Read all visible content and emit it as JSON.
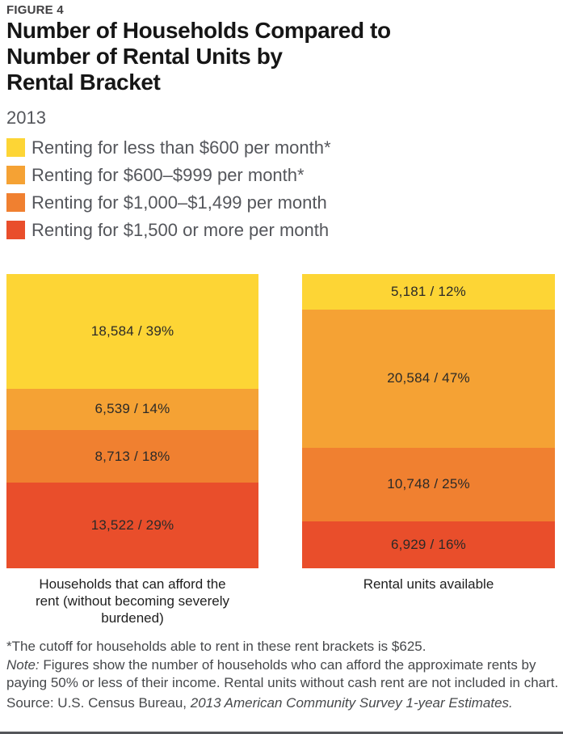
{
  "figure_label": "FIGURE 4",
  "title_lines": [
    "Number of Households Compared to",
    "Number of Rental Units by",
    "Rental Bracket"
  ],
  "subtitle": "2013",
  "colors": {
    "yellow": "#FDD535",
    "orange_light": "#F5A234",
    "orange_dark": "#F08030",
    "red": "#E94E2B",
    "legend_text": "#54565B",
    "title_text": "#161616",
    "footnote_text": "#46484B",
    "bottom_rule": "#54565A"
  },
  "chart_data": {
    "type": "bar",
    "variant": "stacked-100-percent",
    "title": "Number of Households Compared to Number of Rental Units by Rental Bracket",
    "year": "2013",
    "legend_position": "top",
    "grid": false,
    "categories": [
      "Households that can afford the rent (without becoming severely burdened)",
      "Rental units available"
    ],
    "series": [
      {
        "name": "Renting for less than $600 per month*",
        "color": "#FDD535",
        "values": [
          18584,
          5181
        ],
        "percents": [
          39,
          12
        ],
        "labels": [
          "18,584 / 39%",
          "5,181 / 12%"
        ]
      },
      {
        "name": "Renting for $600–$999 per month*",
        "color": "#F5A234",
        "values": [
          6539,
          20584
        ],
        "percents": [
          14,
          47
        ],
        "labels": [
          "6,539 / 14%",
          "20,584 / 47%"
        ]
      },
      {
        "name": "Renting for $1,000–$1,499 per month",
        "color": "#F08030",
        "values": [
          8713,
          10748
        ],
        "percents": [
          18,
          25
        ],
        "labels": [
          "8,713 / 18%",
          "10,748 / 25%"
        ]
      },
      {
        "name": "Renting for $1,500 or more per month",
        "color": "#E94E2B",
        "values": [
          13522,
          6929
        ],
        "percents": [
          29,
          16
        ],
        "labels": [
          "13,522 / 29%",
          "6,929 / 16%"
        ]
      }
    ]
  },
  "footnotes": {
    "asterisk": "*The cutoff for households able to rent in these rent brackets is $625.",
    "note_label": "Note:",
    "note_text": " Figures show the number of households who can afford the approximate rents by paying 50% or less of their income. Rental units without cash rent are not included in chart.",
    "source_label": "Source: U.S. Census Bureau, ",
    "source_italic": "2013 American Community Survey 1-year Estimates."
  }
}
